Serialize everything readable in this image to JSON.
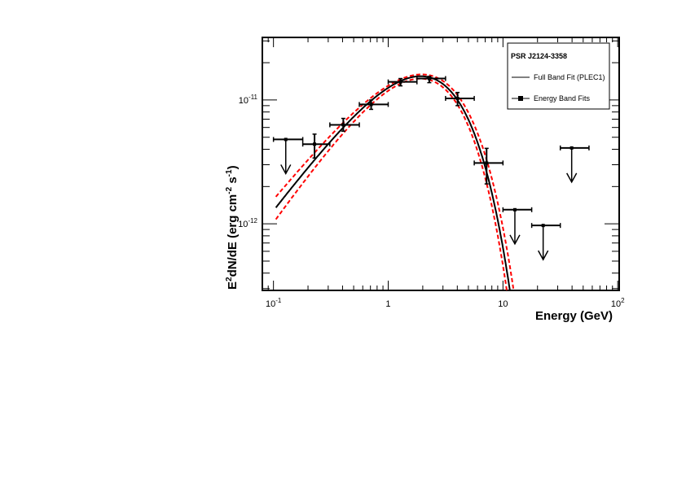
{
  "chart_data": {
    "type": "scatter",
    "title": "PSR J2124-3358",
    "xlabel": "Energy (GeV)",
    "ylabel": "E2dN/dE (erg cm-2 s-1)",
    "ylabel_parts": {
      "base": "E",
      "sup1": "2",
      "mid": "dN/dE (erg cm",
      "sup2": "-2",
      "mid2": " s",
      "sup3": "-1",
      "end": ")"
    },
    "xscale": "log",
    "yscale": "log",
    "xlim": [
      0.08,
      103
    ],
    "ylim": [
      2.9e-13,
      3.2e-11
    ],
    "x_ticks": [
      {
        "value": 0.1,
        "base": "10",
        "exp": "-1"
      },
      {
        "value": 1,
        "base": "1",
        "exp": ""
      },
      {
        "value": 10,
        "base": "10",
        "exp": ""
      },
      {
        "value": 100,
        "base": "10",
        "exp": "2"
      }
    ],
    "y_ticks": [
      {
        "value": 1e-11,
        "base": "10",
        "exp": "-11"
      },
      {
        "value": 1e-12,
        "base": "10",
        "exp": "-12"
      }
    ],
    "legend": {
      "placement": "top-right",
      "title": "PSR J2124-3358",
      "entries": [
        "Full Band Fit (PLEC1)",
        "Energy Band Fits"
      ]
    },
    "model": {
      "name": "PLEC1",
      "central": {
        "K": 2.4e-11,
        "a": 1.246,
        "Ec": 1.54,
        "color": "#000000"
      },
      "upper": {
        "K": 2.35e-11,
        "a": 1.15,
        "Ec": 1.7,
        "color": "#ff0000"
      },
      "lower": {
        "K": 2.4e-11,
        "a": 1.34,
        "Ec": 1.42,
        "color": "#ff0000"
      },
      "emin": 0.105
    },
    "points": [
      {
        "e": 0.128,
        "elo": 0.1,
        "ehi": 0.18,
        "f": 4.8e-12,
        "ul": true
      },
      {
        "e": 0.228,
        "elo": 0.18,
        "ehi": 0.31,
        "f": 4.4e-12,
        "flo": 3.4e-12,
        "fhi": 5.3e-12,
        "ul": false
      },
      {
        "e": 0.406,
        "elo": 0.31,
        "ehi": 0.56,
        "f": 6.3e-12,
        "flo": 5.6e-12,
        "fhi": 7.1e-12,
        "ul": false
      },
      {
        "e": 0.71,
        "elo": 0.56,
        "ehi": 1.0,
        "f": 9.2e-12,
        "flo": 8.4e-12,
        "fhi": 1e-11,
        "ul": false
      },
      {
        "e": 1.28,
        "elo": 1.0,
        "ehi": 1.78,
        "f": 1.4e-11,
        "flo": 1.3e-11,
        "fhi": 1.49e-11,
        "ul": false
      },
      {
        "e": 2.28,
        "elo": 1.78,
        "ehi": 3.16,
        "f": 1.49e-11,
        "flo": 1.38e-11,
        "fhi": 1.55e-11,
        "ul": false
      },
      {
        "e": 4.02,
        "elo": 3.16,
        "ehi": 5.62,
        "f": 1.03e-11,
        "flo": 9e-12,
        "fhi": 1.15e-11,
        "ul": false
      },
      {
        "e": 7.2,
        "elo": 5.62,
        "ehi": 10.0,
        "f": 3.1e-12,
        "flo": 2.1e-12,
        "fhi": 4.07e-12,
        "ul": false
      },
      {
        "e": 12.7,
        "elo": 10.0,
        "ehi": 17.8,
        "f": 1.3e-12,
        "ul": true
      },
      {
        "e": 22.4,
        "elo": 17.8,
        "ehi": 31.6,
        "f": 9.7e-13,
        "ul": true
      },
      {
        "e": 39.7,
        "elo": 31.6,
        "ehi": 56.2,
        "f": 4.1e-12,
        "ul": true
      }
    ]
  }
}
